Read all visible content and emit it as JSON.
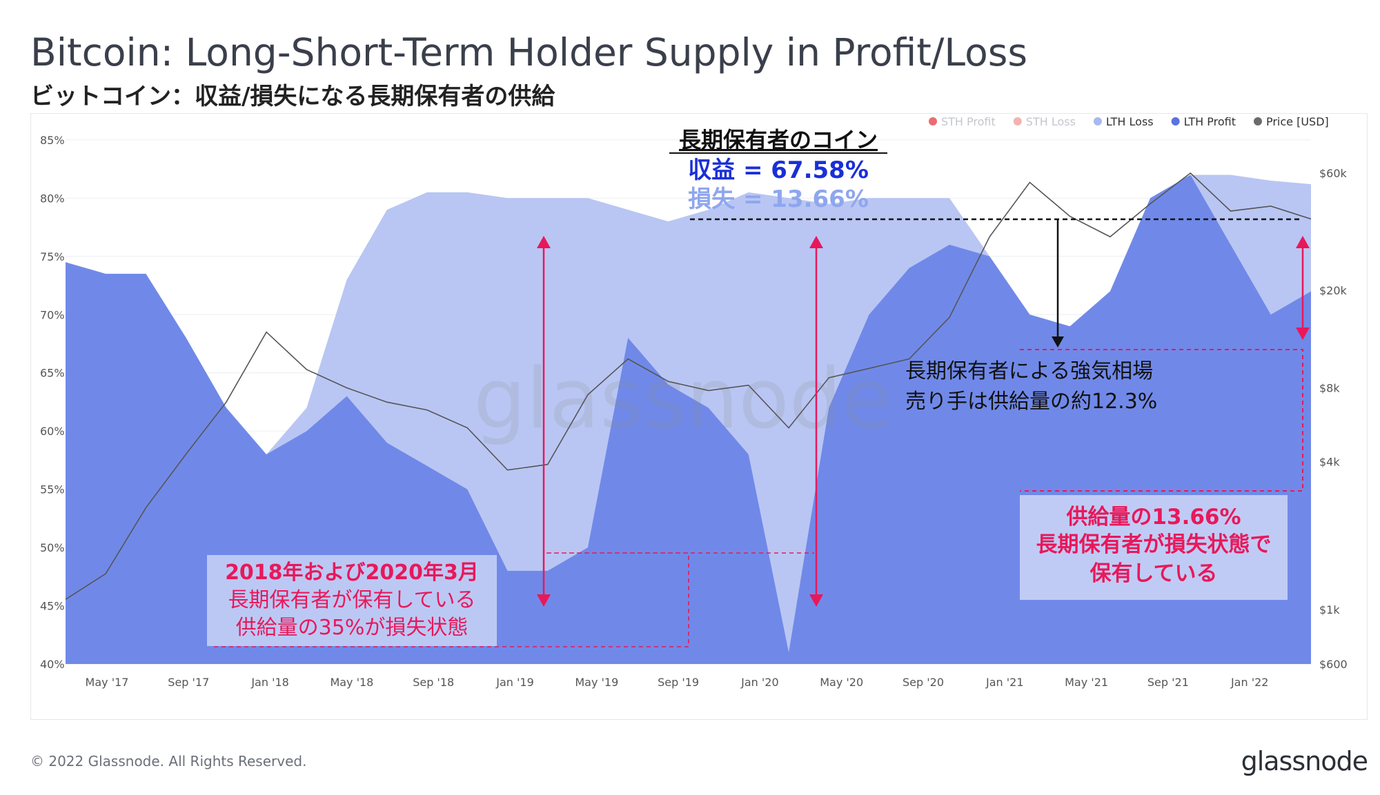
{
  "title": "Bitcoin: Long-Short-Term Holder Supply in Profit/Loss",
  "subtitle": "ビットコイン：収益/損失になる長期保有者の供給",
  "footer": "© 2022 Glassnode. All Rights Reserved.",
  "brand": "glassnode",
  "watermark": "glassnode",
  "legend": [
    {
      "label": "STH Profit",
      "color": "#e5484d",
      "muted": true
    },
    {
      "label": "STH Loss",
      "color": "#f0a0a0",
      "muted": true
    },
    {
      "label": "LTH Loss",
      "color": "#a9b8ef",
      "muted": false
    },
    {
      "label": "LTH Profit",
      "color": "#5a73e0",
      "muted": false
    },
    {
      "label": "Price [USD]",
      "color": "#6b6b6b",
      "muted": false
    }
  ],
  "annotations": {
    "header": "長期保有者のコイン",
    "profit": "収益 = 67.58%",
    "loss": "損失 = 13.66%",
    "bull_line1": "長期保有者による強気相場",
    "bull_line2": "売り手は供給量の約12.3%",
    "left_line1": "2018年および2020年3月",
    "left_line2": "長期保有者が保有している",
    "left_line3": "供給量の35%が損失状態",
    "right_line1": "供給量の13.66%",
    "right_line2": "長期保有者が損失状態で",
    "right_line3": "保有している"
  },
  "chart_data": {
    "type": "area",
    "x": [
      "2017-03",
      "2017-05",
      "2017-07",
      "2017-09",
      "2017-11",
      "2018-01",
      "2018-03",
      "2018-05",
      "2018-07",
      "2018-09",
      "2018-11",
      "2019-01",
      "2019-03",
      "2019-05",
      "2019-07",
      "2019-09",
      "2019-11",
      "2020-01",
      "2020-03",
      "2020-05",
      "2020-07",
      "2020-09",
      "2020-11",
      "2021-01",
      "2021-03",
      "2021-05",
      "2021-07",
      "2021-09",
      "2021-11",
      "2022-01",
      "2022-03",
      "2022-05"
    ],
    "series": [
      {
        "name": "LTH Profit",
        "values": [
          74.5,
          73.5,
          73.5,
          68,
          62,
          58,
          60,
          63,
          59,
          57,
          55,
          48,
          48,
          50,
          68,
          64,
          62,
          58,
          41,
          62,
          70,
          74,
          76,
          75,
          70,
          69,
          72,
          80,
          82,
          76,
          70,
          72
        ]
      },
      {
        "name": "LTH Loss",
        "values": [
          74.5,
          73.5,
          73.5,
          68,
          62,
          58,
          62,
          73,
          79,
          80.5,
          80.5,
          80,
          80,
          80,
          79,
          78,
          79,
          80.5,
          80,
          79.5,
          80,
          80,
          80,
          75,
          70,
          69,
          72,
          80,
          82,
          82,
          81.5,
          81.2
        ]
      },
      {
        "name": "Price [USD]",
        "values": [
          1100,
          1400,
          2600,
          4300,
          7000,
          13500,
          9500,
          8000,
          7000,
          6500,
          5500,
          3700,
          3900,
          7500,
          10500,
          8500,
          7800,
          8200,
          5500,
          8800,
          9600,
          10500,
          15500,
          33000,
          55000,
          40000,
          33000,
          45000,
          60000,
          42000,
          44000,
          39000
        ]
      }
    ],
    "x_ticks": [
      "May '17",
      "Sep '17",
      "Jan '18",
      "May '18",
      "Sep '18",
      "Jan '19",
      "May '19",
      "Sep '19",
      "Jan '20",
      "May '20",
      "Sep '20",
      "Jan '21",
      "May '21",
      "Sep '21",
      "Jan '22"
    ],
    "y_left_ticks": [
      "85%",
      "80%",
      "75%",
      "70%",
      "65%",
      "60%",
      "55%",
      "50%",
      "45%",
      "40%"
    ],
    "y_right_ticks": [
      "$60k",
      "$20k",
      "$8k",
      "$4k",
      "$1k",
      "$600"
    ],
    "ylim": [
      40,
      86
    ],
    "y2lim": [
      600,
      60000
    ],
    "y2_scale": "log",
    "legend_position": "top-right",
    "grid": true
  },
  "colors": {
    "lth_profit": "#7089e8",
    "lth_loss": "#b9c6f3",
    "price": "#555555",
    "accent": "#e8185a",
    "profit_text": "#1a2fd6",
    "loss_text": "#8fa6ee"
  }
}
